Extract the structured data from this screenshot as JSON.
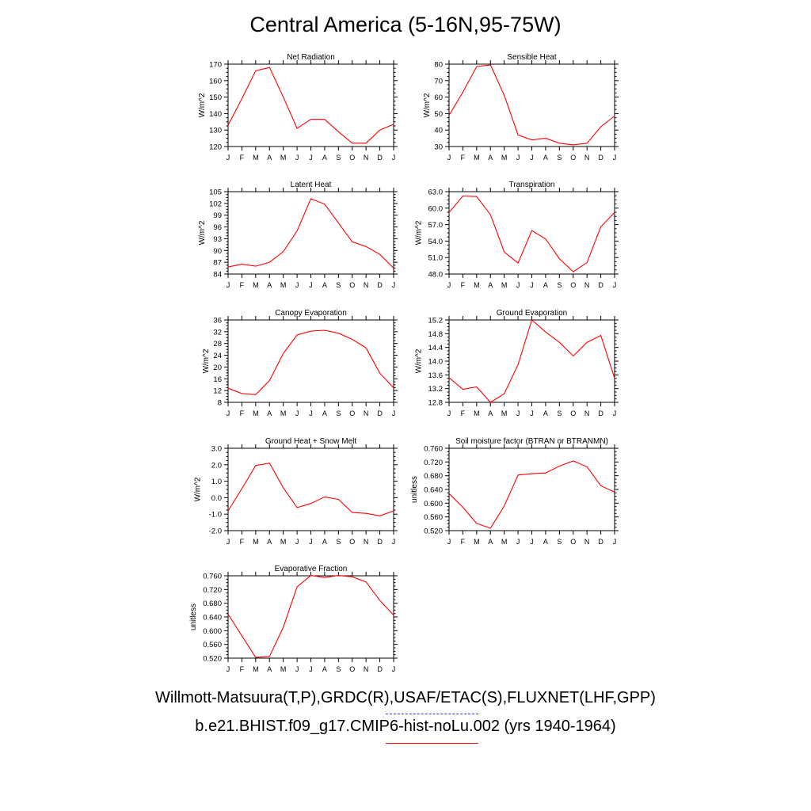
{
  "title": "Central America (5-16N,95-75W)",
  "legend": {
    "observed_label": "Willmott-Matsuura(T,P),GRDC(R),USAF/ETAC(S),FLUXNET(LHF,GPP)",
    "model_label": "b.e21.BHIST.f09_g17.CMIP6-hist-noLu.002 (yrs 1940-1964)",
    "observed_color": "#3333ff",
    "model_color": "#ff0000"
  },
  "chart_data": [
    {
      "type": "line",
      "title": "Net Radiation",
      "ylabel": "W/m^2",
      "categories": [
        "J",
        "F",
        "M",
        "A",
        "M",
        "J",
        "J",
        "A",
        "S",
        "O",
        "N",
        "D",
        "J"
      ],
      "ylim": [
        120,
        170
      ],
      "yticks": [
        "120",
        "130",
        "140",
        "150",
        "160",
        "170"
      ],
      "series": [
        {
          "color": "#ff0000",
          "values": [
            133,
            149,
            166,
            168,
            150,
            131,
            136.5,
            136.5,
            129,
            122,
            122,
            130,
            133.5
          ]
        }
      ]
    },
    {
      "type": "line",
      "title": "Sensible Heat",
      "ylabel": "W/m^2",
      "categories": [
        "J",
        "F",
        "M",
        "A",
        "M",
        "J",
        "J",
        "A",
        "S",
        "O",
        "N",
        "D",
        "J"
      ],
      "ylim": [
        30,
        80
      ],
      "yticks": [
        "30",
        "40",
        "50",
        "60",
        "70",
        "80"
      ],
      "series": [
        {
          "color": "#ff0000",
          "values": [
            49,
            63,
            78.5,
            79.5,
            61,
            37,
            34,
            35,
            32,
            31,
            32,
            42,
            48.5
          ]
        }
      ]
    },
    {
      "type": "line",
      "title": "Latent Heat",
      "ylabel": "W/m^2",
      "categories": [
        "J",
        "F",
        "M",
        "A",
        "M",
        "J",
        "J",
        "A",
        "S",
        "O",
        "N",
        "D",
        "J"
      ],
      "ylim": [
        84,
        105
      ],
      "yticks": [
        "84",
        "87",
        "90",
        "93",
        "96",
        "99",
        "102",
        "105"
      ],
      "series": [
        {
          "color": "#ff0000",
          "values": [
            85.8,
            86.5,
            86.0,
            87.0,
            89.7,
            95.0,
            103.2,
            101.8,
            97.0,
            92.2,
            91.0,
            89.0,
            85.5
          ]
        }
      ]
    },
    {
      "type": "line",
      "title": "Transpiration",
      "ylabel": "W/m^2",
      "categories": [
        "J",
        "F",
        "M",
        "A",
        "M",
        "J",
        "J",
        "A",
        "S",
        "O",
        "N",
        "D",
        "J"
      ],
      "ylim": [
        48,
        63
      ],
      "yticks": [
        "48.0",
        "51.0",
        "54.0",
        "57.0",
        "60.0",
        "63.0"
      ],
      "series": [
        {
          "color": "#ff0000",
          "values": [
            59.2,
            62.2,
            62.1,
            58.8,
            52.0,
            50.0,
            55.9,
            54.4,
            50.8,
            48.4,
            50.1,
            56.6,
            59.2
          ]
        }
      ]
    },
    {
      "type": "line",
      "title": "Canopy Evaporation",
      "ylabel": "W/m^2",
      "categories": [
        "J",
        "F",
        "M",
        "A",
        "M",
        "J",
        "J",
        "A",
        "S",
        "O",
        "N",
        "D",
        "J"
      ],
      "ylim": [
        8,
        36
      ],
      "yticks": [
        "8",
        "12",
        "16",
        "20",
        "24",
        "28",
        "32",
        "36"
      ],
      "series": [
        {
          "color": "#ff0000",
          "values": [
            12.8,
            11.0,
            10.6,
            15.4,
            24.6,
            30.9,
            32.2,
            32.5,
            31.5,
            29.4,
            26.5,
            17.9,
            12.9
          ]
        }
      ]
    },
    {
      "type": "line",
      "title": "Ground Evaporation",
      "ylabel": "W/m^2",
      "categories": [
        "J",
        "F",
        "M",
        "A",
        "M",
        "J",
        "J",
        "A",
        "S",
        "O",
        "N",
        "D",
        "J"
      ],
      "ylim": [
        12.8,
        15.2
      ],
      "yticks": [
        "12.8",
        "13.2",
        "13.6",
        "14.0",
        "14.4",
        "14.8",
        "15.2"
      ],
      "series": [
        {
          "color": "#ff0000",
          "values": [
            13.52,
            13.18,
            13.25,
            12.8,
            13.05,
            13.9,
            15.2,
            14.85,
            14.55,
            14.15,
            14.55,
            14.75,
            13.5
          ]
        }
      ]
    },
    {
      "type": "line",
      "title": "Ground Heat + Snow Melt",
      "ylabel": "W/m^2",
      "categories": [
        "J",
        "F",
        "M",
        "A",
        "M",
        "J",
        "J",
        "A",
        "S",
        "O",
        "N",
        "D",
        "J"
      ],
      "ylim": [
        -2.0,
        3.0
      ],
      "yticks": [
        "-2.0",
        "-1.0",
        "0.0",
        "1.0",
        "2.0",
        "3.0"
      ],
      "series": [
        {
          "color": "#ff0000",
          "values": [
            -0.8,
            0.55,
            1.95,
            2.1,
            0.6,
            -0.6,
            -0.35,
            0.05,
            -0.1,
            -0.9,
            -0.95,
            -1.1,
            -0.8
          ]
        }
      ]
    },
    {
      "type": "line",
      "title": "Soil moisture factor (BTRAN or BTRANMN)",
      "ylabel": "unitless",
      "categories": [
        "J",
        "F",
        "M",
        "A",
        "M",
        "J",
        "J",
        "A",
        "S",
        "O",
        "N",
        "D",
        "J"
      ],
      "ylim": [
        0.52,
        0.76
      ],
      "yticks": [
        "0.520",
        "0.560",
        "0.600",
        "0.640",
        "0.680",
        "0.720",
        "0.760"
      ],
      "series": [
        {
          "color": "#ff0000",
          "values": [
            0.628,
            0.588,
            0.541,
            0.527,
            0.592,
            0.682,
            0.686,
            0.688,
            0.708,
            0.723,
            0.706,
            0.651,
            0.632
          ]
        }
      ]
    },
    {
      "type": "line",
      "title": "Evaporative Fraction",
      "ylabel": "unitless",
      "categories": [
        "J",
        "F",
        "M",
        "A",
        "M",
        "J",
        "J",
        "A",
        "S",
        "O",
        "N",
        "D",
        "J"
      ],
      "ylim": [
        0.52,
        0.76
      ],
      "yticks": [
        "0.520",
        "0.560",
        "0.600",
        "0.640",
        "0.680",
        "0.720",
        "0.760"
      ],
      "series": [
        {
          "color": "#ff0000",
          "values": [
            0.648,
            0.585,
            0.522,
            0.525,
            0.61,
            0.728,
            0.761,
            0.755,
            0.761,
            0.757,
            0.742,
            0.688,
            0.645
          ]
        }
      ]
    }
  ]
}
